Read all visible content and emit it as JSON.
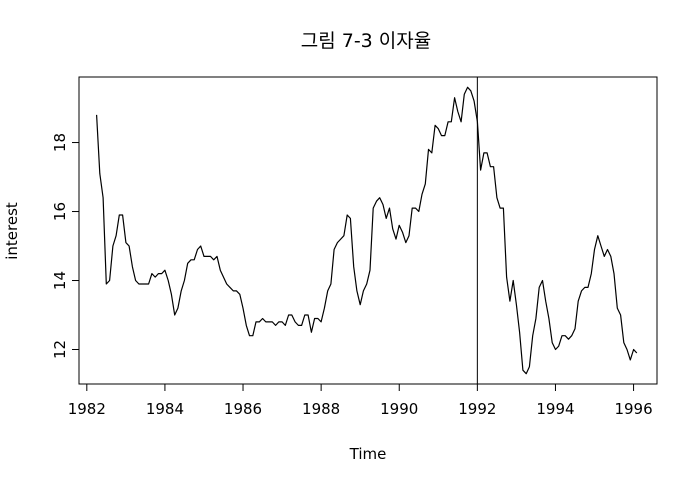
{
  "chart_data": {
    "type": "line",
    "title": "그림 7-3 이자율",
    "xlabel": "Time",
    "ylabel": "interest",
    "xlim": [
      1981.8,
      1996.6
    ],
    "ylim": [
      11.0,
      19.9
    ],
    "xticks": [
      1982,
      1984,
      1986,
      1988,
      1990,
      1992,
      1994,
      1996
    ],
    "yticks": [
      12,
      14,
      16,
      18
    ],
    "vline": 1992.0,
    "grid": false,
    "series": [
      {
        "x": [
          1982.25,
          1982.333,
          1982.417,
          1982.5,
          1982.583,
          1982.667,
          1982.75,
          1982.833,
          1982.917,
          1983.0,
          1983.083,
          1983.167,
          1983.25,
          1983.333,
          1983.417,
          1983.5,
          1983.583,
          1983.667,
          1983.75,
          1983.833,
          1983.917,
          1984.0,
          1984.083,
          1984.167,
          1984.25,
          1984.333,
          1984.417,
          1984.5,
          1984.583,
          1984.667,
          1984.75,
          1984.833,
          1984.917,
          1985.0,
          1985.083,
          1985.167,
          1985.25,
          1985.333,
          1985.417,
          1985.5,
          1985.583,
          1985.667,
          1985.75,
          1985.833,
          1985.917,
          1986.0,
          1986.083,
          1986.167,
          1986.25,
          1986.333,
          1986.417,
          1986.5,
          1986.583,
          1986.667,
          1986.75,
          1986.833,
          1986.917,
          1987.0,
          1987.083,
          1987.167,
          1987.25,
          1987.333,
          1987.417,
          1987.5,
          1987.583,
          1987.667,
          1987.75,
          1987.833,
          1987.917,
          1988.0,
          1988.083,
          1988.167,
          1988.25,
          1988.333,
          1988.417,
          1988.5,
          1988.583,
          1988.667,
          1988.75,
          1988.833,
          1988.917,
          1989.0,
          1989.083,
          1989.167,
          1989.25,
          1989.333,
          1989.417,
          1989.5,
          1989.583,
          1989.667,
          1989.75,
          1989.833,
          1989.917,
          1990.0,
          1990.083,
          1990.167,
          1990.25,
          1990.333,
          1990.417,
          1990.5,
          1990.583,
          1990.667,
          1990.75,
          1990.833,
          1990.917,
          1991.0,
          1991.083,
          1991.167,
          1991.25,
          1991.333,
          1991.417,
          1991.5,
          1991.583,
          1991.667,
          1991.75,
          1991.833,
          1991.917,
          1992.0,
          1992.083,
          1992.167,
          1992.25,
          1992.333,
          1992.417,
          1992.5,
          1992.583,
          1992.667,
          1992.75,
          1992.833,
          1992.917,
          1993.0,
          1993.083,
          1993.167,
          1993.25,
          1993.333,
          1993.417,
          1993.5,
          1993.583,
          1993.667,
          1993.75,
          1993.833,
          1993.917,
          1994.0,
          1994.083,
          1994.167,
          1994.25,
          1994.333,
          1994.417,
          1994.5,
          1994.583,
          1994.667,
          1994.75,
          1994.833,
          1994.917,
          1995.0,
          1995.083,
          1995.167,
          1995.25,
          1995.333,
          1995.417,
          1995.5,
          1995.583,
          1995.667,
          1995.75,
          1995.833,
          1995.917,
          1996.0,
          1996.083
        ],
        "y": [
          18.8,
          17.1,
          16.4,
          13.9,
          14.0,
          15.0,
          15.3,
          15.9,
          15.9,
          15.1,
          15.0,
          14.4,
          14.0,
          13.9,
          13.9,
          13.9,
          13.9,
          14.2,
          14.1,
          14.2,
          14.2,
          14.3,
          14.0,
          13.6,
          13.0,
          13.2,
          13.7,
          14.0,
          14.5,
          14.6,
          14.6,
          14.9,
          15.0,
          14.7,
          14.7,
          14.7,
          14.6,
          14.7,
          14.3,
          14.1,
          13.9,
          13.8,
          13.7,
          13.7,
          13.6,
          13.2,
          12.7,
          12.4,
          12.4,
          12.8,
          12.8,
          12.9,
          12.8,
          12.8,
          12.8,
          12.7,
          12.8,
          12.8,
          12.7,
          13.0,
          13.0,
          12.8,
          12.7,
          12.7,
          13.0,
          13.0,
          12.5,
          12.9,
          12.9,
          12.8,
          13.2,
          13.7,
          13.9,
          14.9,
          15.1,
          15.2,
          15.3,
          15.9,
          15.8,
          14.4,
          13.7,
          13.3,
          13.7,
          13.9,
          14.3,
          16.1,
          16.3,
          16.4,
          16.2,
          15.8,
          16.1,
          15.5,
          15.2,
          15.6,
          15.4,
          15.1,
          15.3,
          16.1,
          16.1,
          16.0,
          16.5,
          16.8,
          17.8,
          17.7,
          18.5,
          18.4,
          18.2,
          18.2,
          18.6,
          18.6,
          19.3,
          18.9,
          18.6,
          19.4,
          19.6,
          19.5,
          19.2,
          18.6,
          17.2,
          17.7,
          17.7,
          17.3,
          17.3,
          16.4,
          16.1,
          16.1,
          14.1,
          13.4,
          14.0,
          13.3,
          12.5,
          11.4,
          11.3,
          11.5,
          12.4,
          12.9,
          13.8,
          14.0,
          13.4,
          12.9,
          12.2,
          12.0,
          12.1,
          12.4,
          12.4,
          12.3,
          12.4,
          12.6,
          13.4,
          13.7,
          13.8,
          13.8,
          14.2,
          14.9,
          15.3,
          15.0,
          14.7,
          14.9,
          14.7,
          14.2,
          13.2,
          13.0,
          12.2,
          12.0,
          11.7,
          12.0,
          11.9
        ]
      }
    ]
  }
}
